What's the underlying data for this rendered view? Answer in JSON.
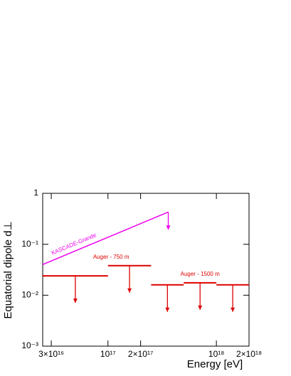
{
  "chart_data": {
    "type": "upper-limits",
    "x_label": "Energy [eV]",
    "y_label": "Equatorial dipole d⊥",
    "xscale": "log",
    "yscale": "log",
    "xlim": [
      2.5e+16,
      2e+18
    ],
    "ylim": [
      0.001,
      1
    ],
    "xticks": [
      {
        "value": 3e+16,
        "label": "3×10¹⁶"
      },
      {
        "value": 1e+17,
        "label": "10¹⁷"
      },
      {
        "value": 2e+17,
        "label": "2×10¹⁷"
      },
      {
        "value": 1e+18,
        "label": "10¹⁸"
      },
      {
        "value": 2e+18,
        "label": "2×10¹⁸"
      }
    ],
    "yticks": [
      {
        "value": 0.001,
        "label": "10⁻³"
      },
      {
        "value": 0.01,
        "label": "10⁻²"
      },
      {
        "value": 0.1,
        "label": "10⁻¹"
      },
      1
    ],
    "series": [
      {
        "name": "KASCADE-Grande",
        "color": "#ee00ee",
        "kind": "line",
        "x": [
          2.5e+16,
          3.6e+17
        ],
        "values": [
          0.04,
          0.43
        ]
      },
      {
        "name": "Auger - 750 m",
        "color": "#dd0000",
        "kind": "bins",
        "x_low": [
          2.5e+16,
          1e+17
        ],
        "x_high": [
          1e+17,
          2.5e+17
        ],
        "values": [
          0.024,
          0.038
        ]
      },
      {
        "name": "Auger - 1500 m",
        "color": "#dd0000",
        "kind": "bins",
        "x_low": [
          2.5e+17,
          5e+17,
          1e+18
        ],
        "x_high": [
          5e+17,
          1e+18,
          2e+18
        ],
        "values": [
          0.016,
          0.0175,
          0.016
        ]
      }
    ]
  }
}
